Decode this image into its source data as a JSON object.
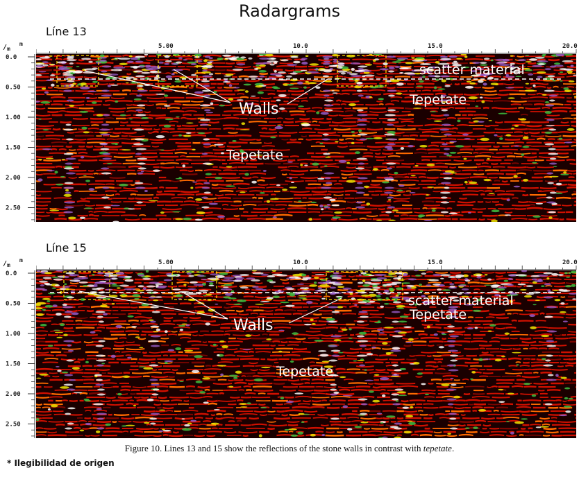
{
  "figure_title": "Radargrams",
  "caption_main": "Figure 10. Lines 13 and 15 show the reflections of the stone walls in contrast with ",
  "caption_italic": "tepetate",
  "caption_end": ".",
  "footnote": "* Ilegibilidad de origen",
  "panels": [
    {
      "label": "Línea 13",
      "label_display": "Líne 13",
      "unit_x": "m",
      "unit_y": "m",
      "x_ticks": [
        "5.00",
        "10.0",
        "15.0",
        "20.0"
      ],
      "y_ticks": [
        "0.0",
        "0.50",
        "1.00",
        "1.50",
        "2.00",
        "2.50"
      ],
      "annotations": {
        "walls": "Walls",
        "scatter": "scatter material",
        "tepetate_right": "Tepetate",
        "tepetate_center": "Tepetate"
      }
    },
    {
      "label": "Línea 15",
      "label_display": "Líne 15",
      "unit_x": "m",
      "unit_y": "m",
      "x_ticks": [
        "5.00",
        "10.0",
        "15.0",
        "20.0"
      ],
      "y_ticks": [
        "0.0",
        "0.50",
        "1.00",
        "1.50",
        "2.00",
        "2.50"
      ],
      "annotations": {
        "walls": "Walls",
        "scatter": "scatter material",
        "tepetate_right": "Tepetate",
        "tepetate_center": "Tepetate"
      }
    }
  ],
  "colors": {
    "background": "#1a0000",
    "red": "#d01000",
    "orange": "#ff6a00",
    "yellow": "#f2e600",
    "green": "#3fbf3f",
    "purple": "#9a5cc9",
    "white": "#ffffff"
  }
}
